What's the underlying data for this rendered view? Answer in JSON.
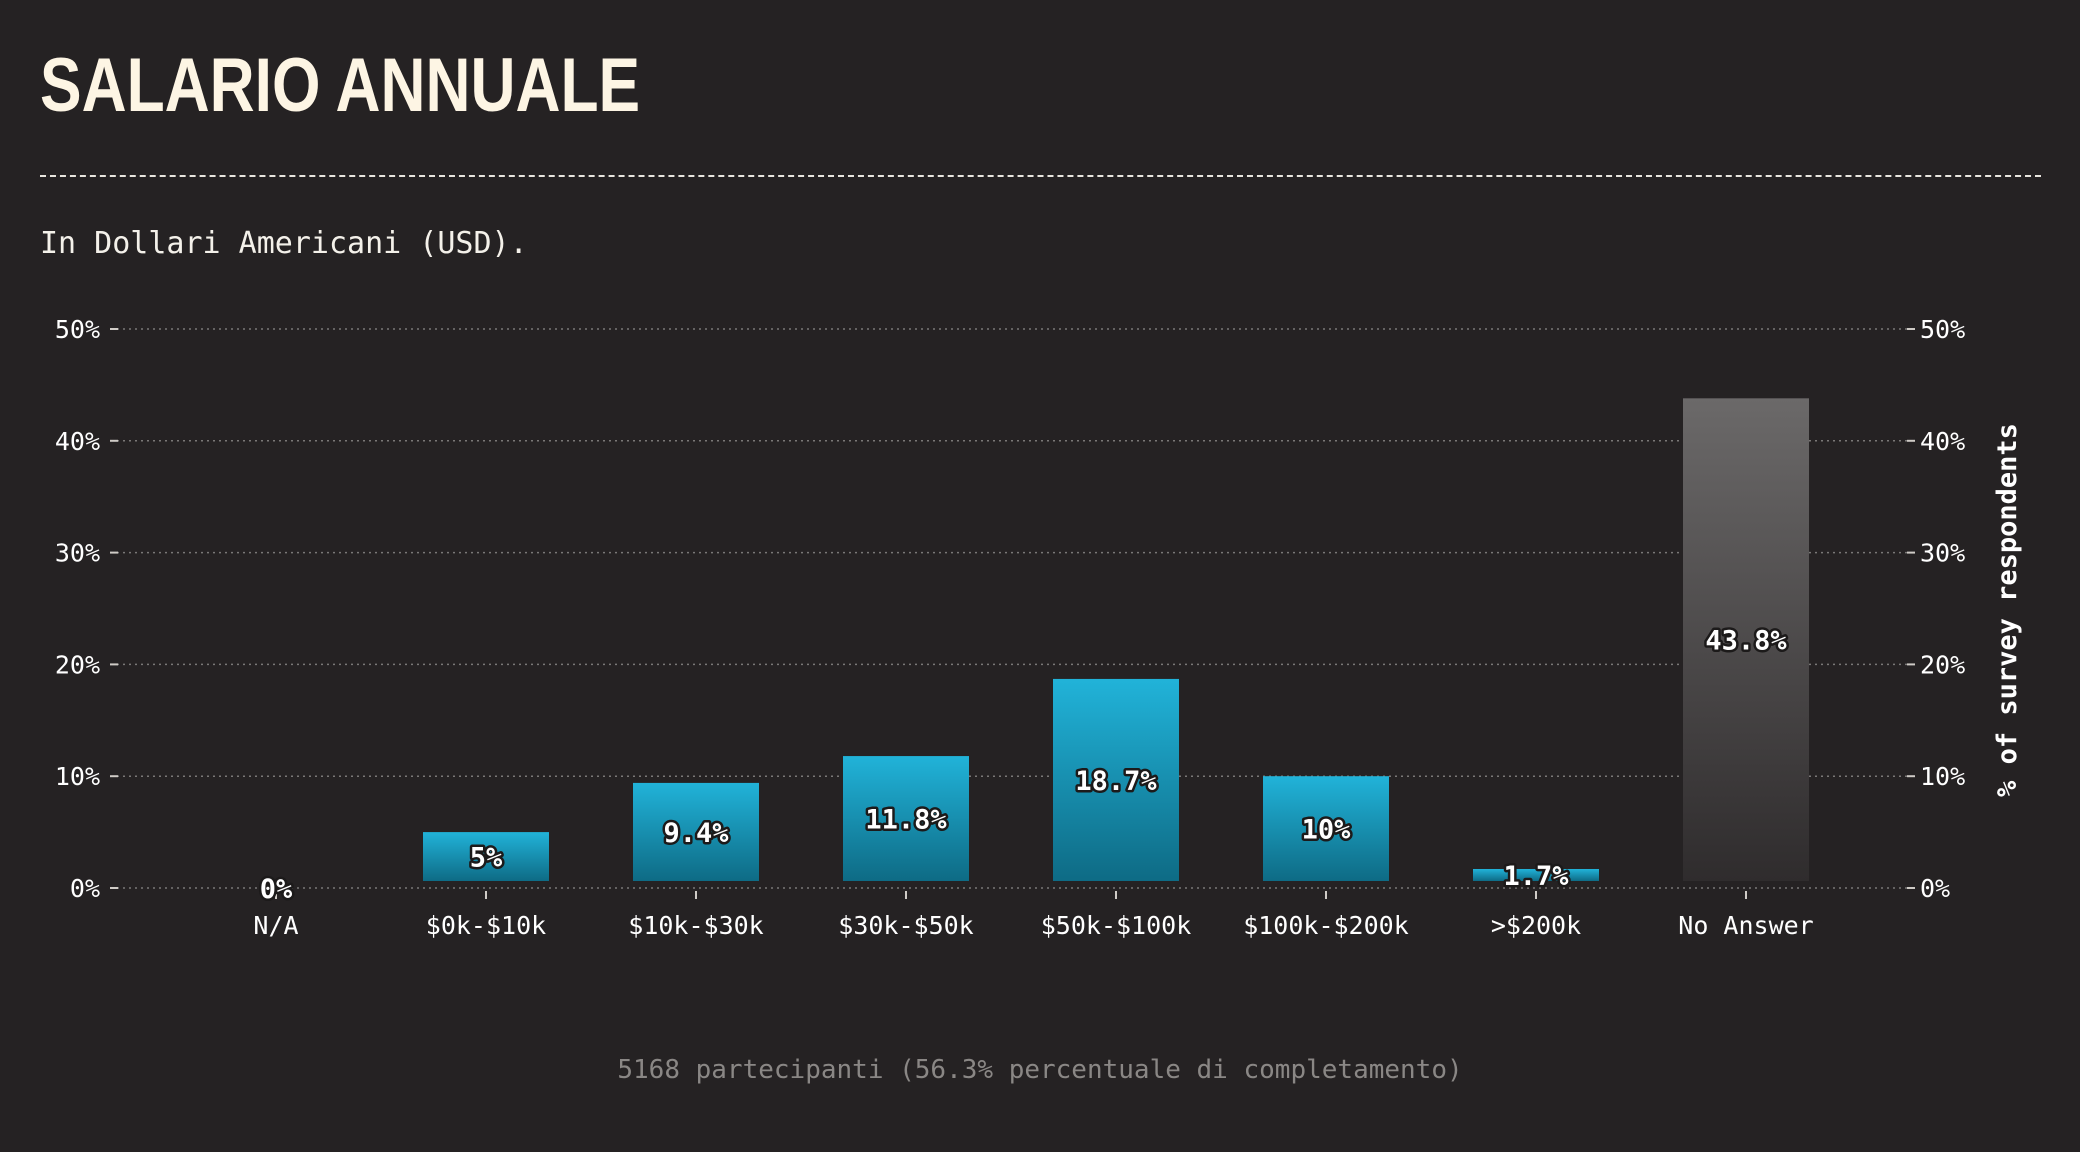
{
  "header": {
    "title": "SALARIO ANNUALE",
    "subtitle": "In Dollari Americani (USD)."
  },
  "footer": {
    "note": "5168 partecipanti (56.3% percentuale di completamento)"
  },
  "colors": {
    "background": "#252223",
    "bar_top": "#21b3d9",
    "bar_bottom": "#0e6b85",
    "no_answer_top": "#6b6969",
    "no_answer_bottom": "#2f2c2d",
    "grid": "#7a7877",
    "text": "#ffffff"
  },
  "chart_data": {
    "type": "bar",
    "title": "SALARIO ANNUALE",
    "subtitle": "In Dollari Americani (USD).",
    "categories": [
      "N/A",
      "$0k-$10k",
      "$10k-$30k",
      "$30k-$50k",
      "$50k-$100k",
      "$100k-$200k",
      ">$200k",
      "No Answer"
    ],
    "values": [
      0,
      5,
      9.4,
      11.8,
      18.7,
      10,
      1.7,
      43.8
    ],
    "data_labels": [
      "0%",
      "5%",
      "9.4%",
      "11.8%",
      "18.7%",
      "10%",
      "1.7%",
      "43.8%"
    ],
    "highlight_category": "No Answer",
    "ylim": [
      0,
      50
    ],
    "yticks": [
      0,
      10,
      20,
      30,
      40,
      50
    ],
    "ytick_labels": [
      "0%",
      "10%",
      "20%",
      "30%",
      "40%",
      "50%"
    ],
    "ylabel_right": "% of survey respondents",
    "grid": true,
    "dual_y_axis": true
  }
}
